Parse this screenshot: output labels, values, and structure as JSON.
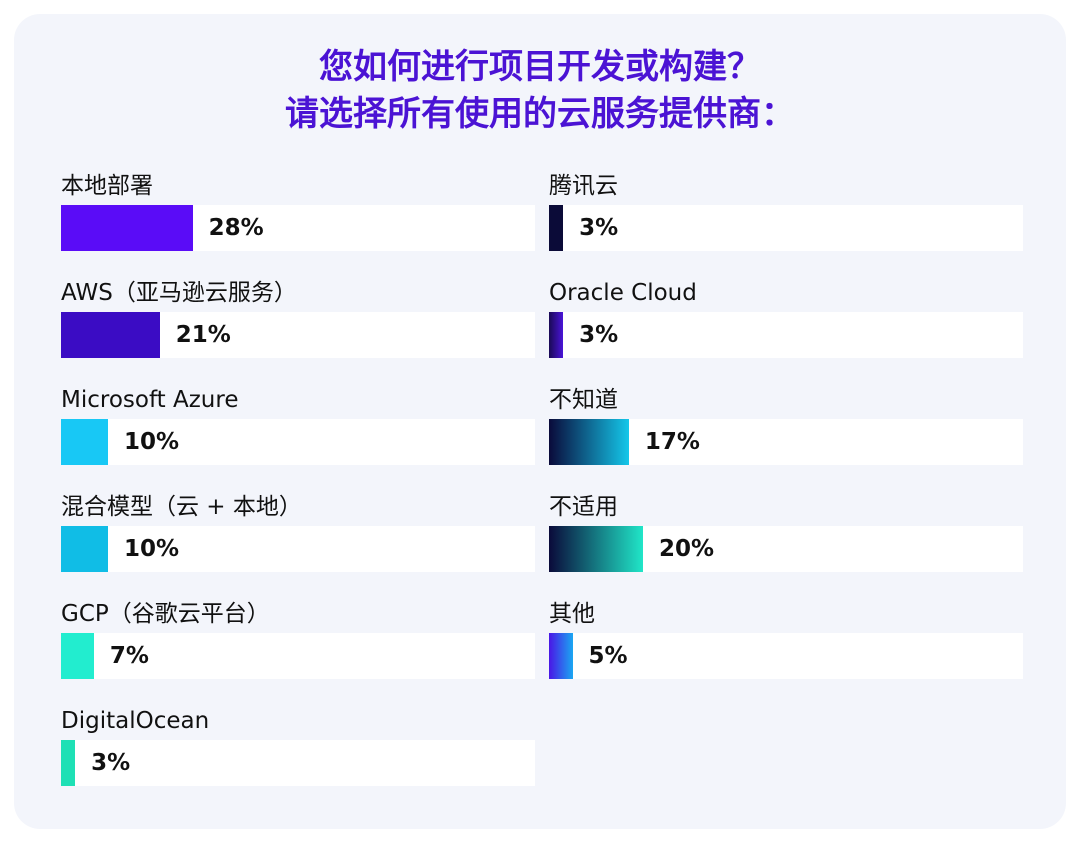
{
  "chart_data": {
    "type": "bar",
    "title_lines": [
      "您如何进行项目开发或构建？",
      "请选择所有使用的云服务提供商："
    ],
    "value_suffix": "%",
    "max_value": 100,
    "columns": [
      [
        {
          "label": "本地部署",
          "value": 28,
          "colors": [
            "#5a0cf7",
            "#5a0cf7"
          ]
        },
        {
          "label": "AWS（亚马逊云服务）",
          "value": 21,
          "colors": [
            "#3b0cc4",
            "#3b0cc4"
          ]
        },
        {
          "label": "Microsoft Azure",
          "value": 10,
          "colors": [
            "#18c8f5",
            "#18c8f5"
          ]
        },
        {
          "label": "混合模型（云 + 本地）",
          "value": 10,
          "colors": [
            "#10bde6",
            "#10bde6"
          ]
        },
        {
          "label": "GCP（谷歌云平台）",
          "value": 7,
          "colors": [
            "#22edcf",
            "#22edcf"
          ]
        },
        {
          "label": "DigitalOcean",
          "value": 3,
          "colors": [
            "#1ee0b5",
            "#1ee0b5"
          ]
        }
      ],
      [
        {
          "label": "腾讯云",
          "value": 3,
          "colors": [
            "#0b0b38",
            "#0b0b38"
          ]
        },
        {
          "label": "Oracle Cloud",
          "value": 3,
          "colors": [
            "#1a0a55",
            "#4a14d8"
          ]
        },
        {
          "label": "不知道",
          "value": 17,
          "colors": [
            "#0a0a3a",
            "#14c7ea"
          ]
        },
        {
          "label": "不适用",
          "value": 20,
          "colors": [
            "#0a0a3a",
            "#20e6c8"
          ]
        },
        {
          "label": "其他",
          "value": 5,
          "colors": [
            "#4a16e6",
            "#1aa7f2"
          ]
        }
      ]
    ]
  }
}
